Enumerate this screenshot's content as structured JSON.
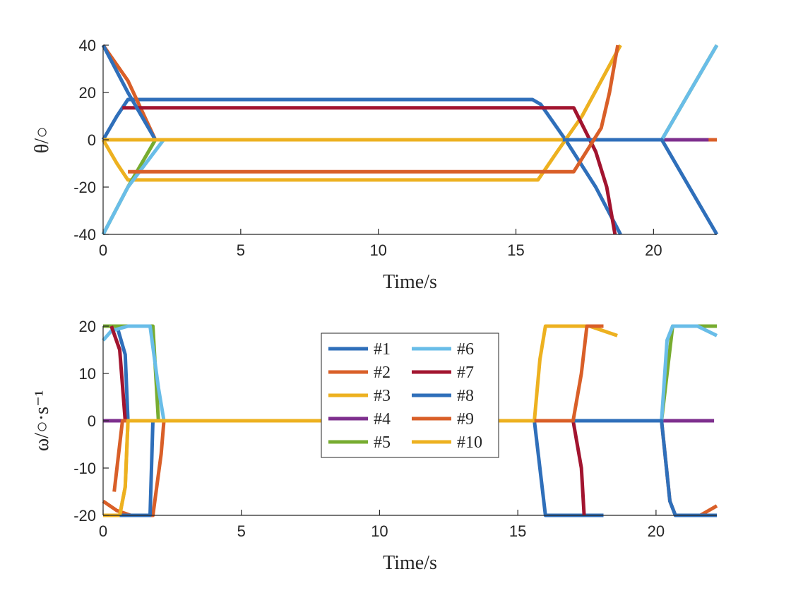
{
  "chart_data": [
    {
      "type": "line",
      "xlabel": "Time/s",
      "ylabel": "θ/○",
      "xlim": [
        0,
        22.3
      ],
      "ylim": [
        -40,
        40
      ],
      "xticks": [
        0,
        5,
        10,
        15,
        20
      ],
      "yticks": [
        -40,
        -20,
        0,
        20,
        40
      ],
      "x_tick_labels": [
        "0",
        "5",
        "10",
        "15",
        "20"
      ],
      "y_tick_labels": [
        "-40",
        "-20",
        "0",
        "20",
        "40"
      ],
      "grid": false,
      "series": [
        {
          "name": "#1",
          "color": "#2f6fba",
          "points": [
            [
              0,
              0
            ],
            [
              0.5,
              10
            ],
            [
              0.9,
              17
            ],
            [
              15.6,
              17
            ],
            [
              15.9,
              15
            ],
            [
              16.8,
              0
            ],
            [
              17.9,
              -20
            ],
            [
              18.8,
              -40
            ]
          ]
        },
        {
          "name": "#2",
          "color": "#d95f28",
          "points": [
            [
              0,
              40
            ],
            [
              0.9,
              25
            ],
            [
              1.9,
              0
            ],
            [
              22.3,
              0
            ]
          ]
        },
        {
          "name": "#3",
          "color": "#edb120",
          "points": [
            [
              0,
              0
            ],
            [
              0.5,
              -10
            ],
            [
              0.9,
              -17
            ],
            [
              15.8,
              -17
            ],
            [
              16.5,
              -5
            ],
            [
              17.4,
              10
            ],
            [
              18.8,
              40
            ]
          ]
        },
        {
          "name": "#4",
          "color": "#7e2f8e",
          "points": [
            [
              0,
              0
            ],
            [
              22,
              0
            ]
          ]
        },
        {
          "name": "#5",
          "color": "#77ac30",
          "points": [
            [
              0,
              -40
            ],
            [
              0.9,
              -20
            ],
            [
              1.9,
              0
            ],
            [
              20.3,
              0
            ],
            [
              21.3,
              20
            ],
            [
              22.3,
              40
            ]
          ]
        },
        {
          "name": "#6",
          "color": "#69bde8",
          "points": [
            [
              0,
              -40
            ],
            [
              0.9,
              -20
            ],
            [
              2.2,
              0
            ],
            [
              20.3,
              0
            ],
            [
              21.3,
              20
            ],
            [
              22.3,
              40
            ]
          ]
        },
        {
          "name": "#7",
          "color": "#a2142f",
          "points": [
            [
              0.7,
              13.5
            ],
            [
              17.1,
              13.5
            ],
            [
              17.9,
              -5
            ],
            [
              18.3,
              -20
            ],
            [
              18.6,
              -40
            ]
          ]
        },
        {
          "name": "#8",
          "color": "#2f6fba",
          "points": [
            [
              0,
              40
            ],
            [
              0.9,
              20
            ],
            [
              1.9,
              0
            ],
            [
              20.3,
              0
            ],
            [
              21.3,
              -20
            ],
            [
              22.3,
              -40
            ]
          ]
        },
        {
          "name": "#9",
          "color": "#d95f28",
          "points": [
            [
              0.9,
              -13.5
            ],
            [
              17.1,
              -13.5
            ],
            [
              18.1,
              5
            ],
            [
              18.4,
              20
            ],
            [
              18.7,
              40
            ]
          ]
        },
        {
          "name": "#10",
          "color": "#edb120",
          "points": [
            [
              0,
              0
            ],
            [
              1.9,
              0
            ],
            [
              16.7,
              0
            ]
          ]
        }
      ]
    },
    {
      "type": "line",
      "xlabel": "Time/s",
      "ylabel": "ω/○·s⁻¹",
      "xlim": [
        0,
        22.2
      ],
      "ylim": [
        -20,
        20
      ],
      "xticks": [
        0,
        5,
        10,
        15,
        20
      ],
      "yticks": [
        -20,
        -10,
        0,
        10,
        20
      ],
      "x_tick_labels": [
        "0",
        "5",
        "10",
        "15",
        "20"
      ],
      "y_tick_labels": [
        "-20",
        "-10",
        "0",
        "10",
        "20"
      ],
      "grid": false,
      "legend": {
        "placement": "center",
        "columns": 2,
        "entries": [
          "#1",
          "#2",
          "#3",
          "#4",
          "#5",
          "#6",
          "#7",
          "#8",
          "#9",
          "#10"
        ]
      },
      "series": [
        {
          "name": "#1",
          "color": "#2f6fba",
          "points": [
            [
              0,
              20
            ],
            [
              0.5,
              20
            ],
            [
              0.8,
              14
            ],
            [
              0.9,
              0
            ],
            [
              15.6,
              0
            ],
            [
              16,
              -20
            ],
            [
              18.1,
              -20
            ]
          ]
        },
        {
          "name": "#2",
          "color": "#d95f28",
          "points": [
            [
              0,
              -17
            ],
            [
              0.5,
              -19
            ],
            [
              1,
              -20
            ],
            [
              1.8,
              -20
            ],
            [
              2.1,
              -7
            ],
            [
              2.2,
              0
            ],
            [
              20.2,
              0
            ],
            [
              20.5,
              -17
            ],
            [
              20.7,
              -20
            ],
            [
              21.6,
              -20
            ],
            [
              22.2,
              -18
            ]
          ]
        },
        {
          "name": "#3",
          "color": "#edb120",
          "points": [
            [
              0,
              -20
            ],
            [
              0.6,
              -20
            ],
            [
              0.8,
              -14
            ],
            [
              0.9,
              0
            ],
            [
              15.6,
              0
            ],
            [
              15.8,
              13
            ],
            [
              16,
              20
            ],
            [
              17.6,
              20
            ],
            [
              18.6,
              18
            ]
          ]
        },
        {
          "name": "#4",
          "color": "#7e2f8e",
          "points": [
            [
              0,
              0
            ],
            [
              22.1,
              0
            ]
          ]
        },
        {
          "name": "#5",
          "color": "#77ac30",
          "points": [
            [
              0,
              20
            ],
            [
              1.8,
              20
            ],
            [
              2,
              0
            ],
            [
              20.2,
              0
            ],
            [
              20.6,
              20
            ],
            [
              22.2,
              20
            ]
          ]
        },
        {
          "name": "#6",
          "color": "#69bde8",
          "points": [
            [
              0,
              17
            ],
            [
              0.3,
              19
            ],
            [
              0.9,
              20
            ],
            [
              1.7,
              20
            ],
            [
              2,
              7
            ],
            [
              2.2,
              0
            ],
            [
              20.2,
              0
            ],
            [
              20.4,
              17
            ],
            [
              20.6,
              20
            ],
            [
              21.5,
              20
            ],
            [
              22.2,
              18
            ]
          ]
        },
        {
          "name": "#7",
          "color": "#a2142f",
          "points": [
            [
              0.3,
              20
            ],
            [
              0.6,
              15
            ],
            [
              0.8,
              0
            ],
            [
              17,
              0
            ],
            [
              17.3,
              -10
            ],
            [
              17.4,
              -20
            ]
          ]
        },
        {
          "name": "#8",
          "color": "#2f6fba",
          "points": [
            [
              0.6,
              -20
            ],
            [
              1.7,
              -20
            ],
            [
              1.8,
              0
            ],
            [
              20.2,
              0
            ],
            [
              20.5,
              -17
            ],
            [
              20.7,
              -20
            ],
            [
              22.2,
              -20
            ]
          ]
        },
        {
          "name": "#9",
          "color": "#d95f28",
          "points": [
            [
              0.4,
              -15
            ],
            [
              0.7,
              0
            ],
            [
              17,
              0
            ],
            [
              17.3,
              10
            ],
            [
              17.5,
              20
            ],
            [
              18.1,
              20
            ]
          ]
        },
        {
          "name": "#10",
          "color": "#edb120",
          "points": [
            [
              0.6,
              -20
            ],
            [
              0.8,
              -14
            ],
            [
              0.9,
              0
            ],
            [
              15.6,
              0
            ]
          ]
        }
      ]
    }
  ]
}
